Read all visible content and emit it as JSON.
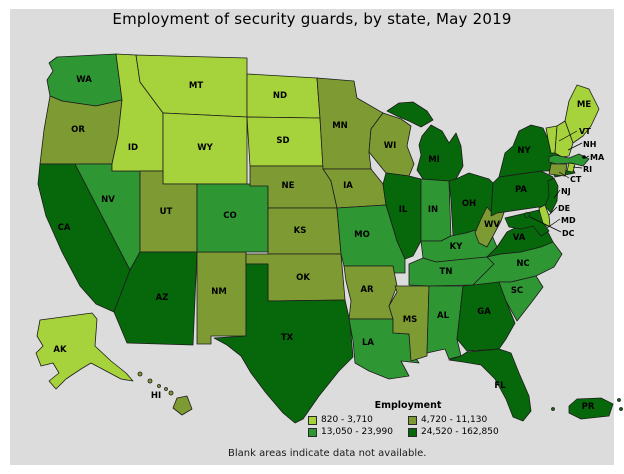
{
  "chart_data": {
    "type": "choropleth",
    "title": "Employment of security guards, by state, May 2019",
    "legend_title": "Employment",
    "note": "Blank areas indicate data not available.",
    "bins": [
      {
        "label": "820 - 3,710",
        "color": "#a6d23c"
      },
      {
        "label": "4,720 - 11,130",
        "color": "#7d9b32"
      },
      {
        "label": "13,050 - 23,990",
        "color": "#2f9634"
      },
      {
        "label": "24,520 - 162,850",
        "color": "#07680b"
      }
    ],
    "states": [
      {
        "abbr": "WA",
        "bin": 3
      },
      {
        "abbr": "OR",
        "bin": 2
      },
      {
        "abbr": "CA",
        "bin": 4
      },
      {
        "abbr": "NV",
        "bin": 3
      },
      {
        "abbr": "ID",
        "bin": 1
      },
      {
        "abbr": "MT",
        "bin": 1
      },
      {
        "abbr": "WY",
        "bin": 1
      },
      {
        "abbr": "UT",
        "bin": 2
      },
      {
        "abbr": "AZ",
        "bin": 4
      },
      {
        "abbr": "NM",
        "bin": 2
      },
      {
        "abbr": "CO",
        "bin": 3
      },
      {
        "abbr": "ND",
        "bin": 1
      },
      {
        "abbr": "SD",
        "bin": 1
      },
      {
        "abbr": "NE",
        "bin": 2
      },
      {
        "abbr": "KS",
        "bin": 2
      },
      {
        "abbr": "OK",
        "bin": 2
      },
      {
        "abbr": "TX",
        "bin": 4
      },
      {
        "abbr": "MN",
        "bin": 2
      },
      {
        "abbr": "IA",
        "bin": 2
      },
      {
        "abbr": "MO",
        "bin": 3
      },
      {
        "abbr": "AR",
        "bin": 2
      },
      {
        "abbr": "LA",
        "bin": 3
      },
      {
        "abbr": "WI",
        "bin": 2
      },
      {
        "abbr": "IL",
        "bin": 4
      },
      {
        "abbr": "MS",
        "bin": 2
      },
      {
        "abbr": "MI",
        "bin": 4
      },
      {
        "abbr": "IN",
        "bin": 3
      },
      {
        "abbr": "OH",
        "bin": 4
      },
      {
        "abbr": "KY",
        "bin": 3
      },
      {
        "abbr": "TN",
        "bin": 3
      },
      {
        "abbr": "AL",
        "bin": 3
      },
      {
        "abbr": "GA",
        "bin": 4
      },
      {
        "abbr": "FL",
        "bin": 4
      },
      {
        "abbr": "WV",
        "bin": 2
      },
      {
        "abbr": "VA",
        "bin": 4
      },
      {
        "abbr": "NC",
        "bin": 3
      },
      {
        "abbr": "SC",
        "bin": 3
      },
      {
        "abbr": "PA",
        "bin": 4
      },
      {
        "abbr": "NY",
        "bin": 4
      },
      {
        "abbr": "ME",
        "bin": 1
      },
      {
        "abbr": "VT",
        "bin": 1
      },
      {
        "abbr": "NH",
        "bin": 1
      },
      {
        "abbr": "MA",
        "bin": 3
      },
      {
        "abbr": "RI",
        "bin": 1
      },
      {
        "abbr": "CT",
        "bin": 2
      },
      {
        "abbr": "NJ",
        "bin": 4
      },
      {
        "abbr": "DE",
        "bin": 1
      },
      {
        "abbr": "MD",
        "bin": 4
      },
      {
        "abbr": "DC",
        "bin": 4
      },
      {
        "abbr": "AK",
        "bin": 1
      },
      {
        "abbr": "HI",
        "bin": 2
      },
      {
        "abbr": "PR",
        "bin": 4
      }
    ]
  },
  "colors": {
    "page_background": "#ffffff",
    "panel_background": "#dcdcdc",
    "state_border": "#1c1c1c"
  }
}
